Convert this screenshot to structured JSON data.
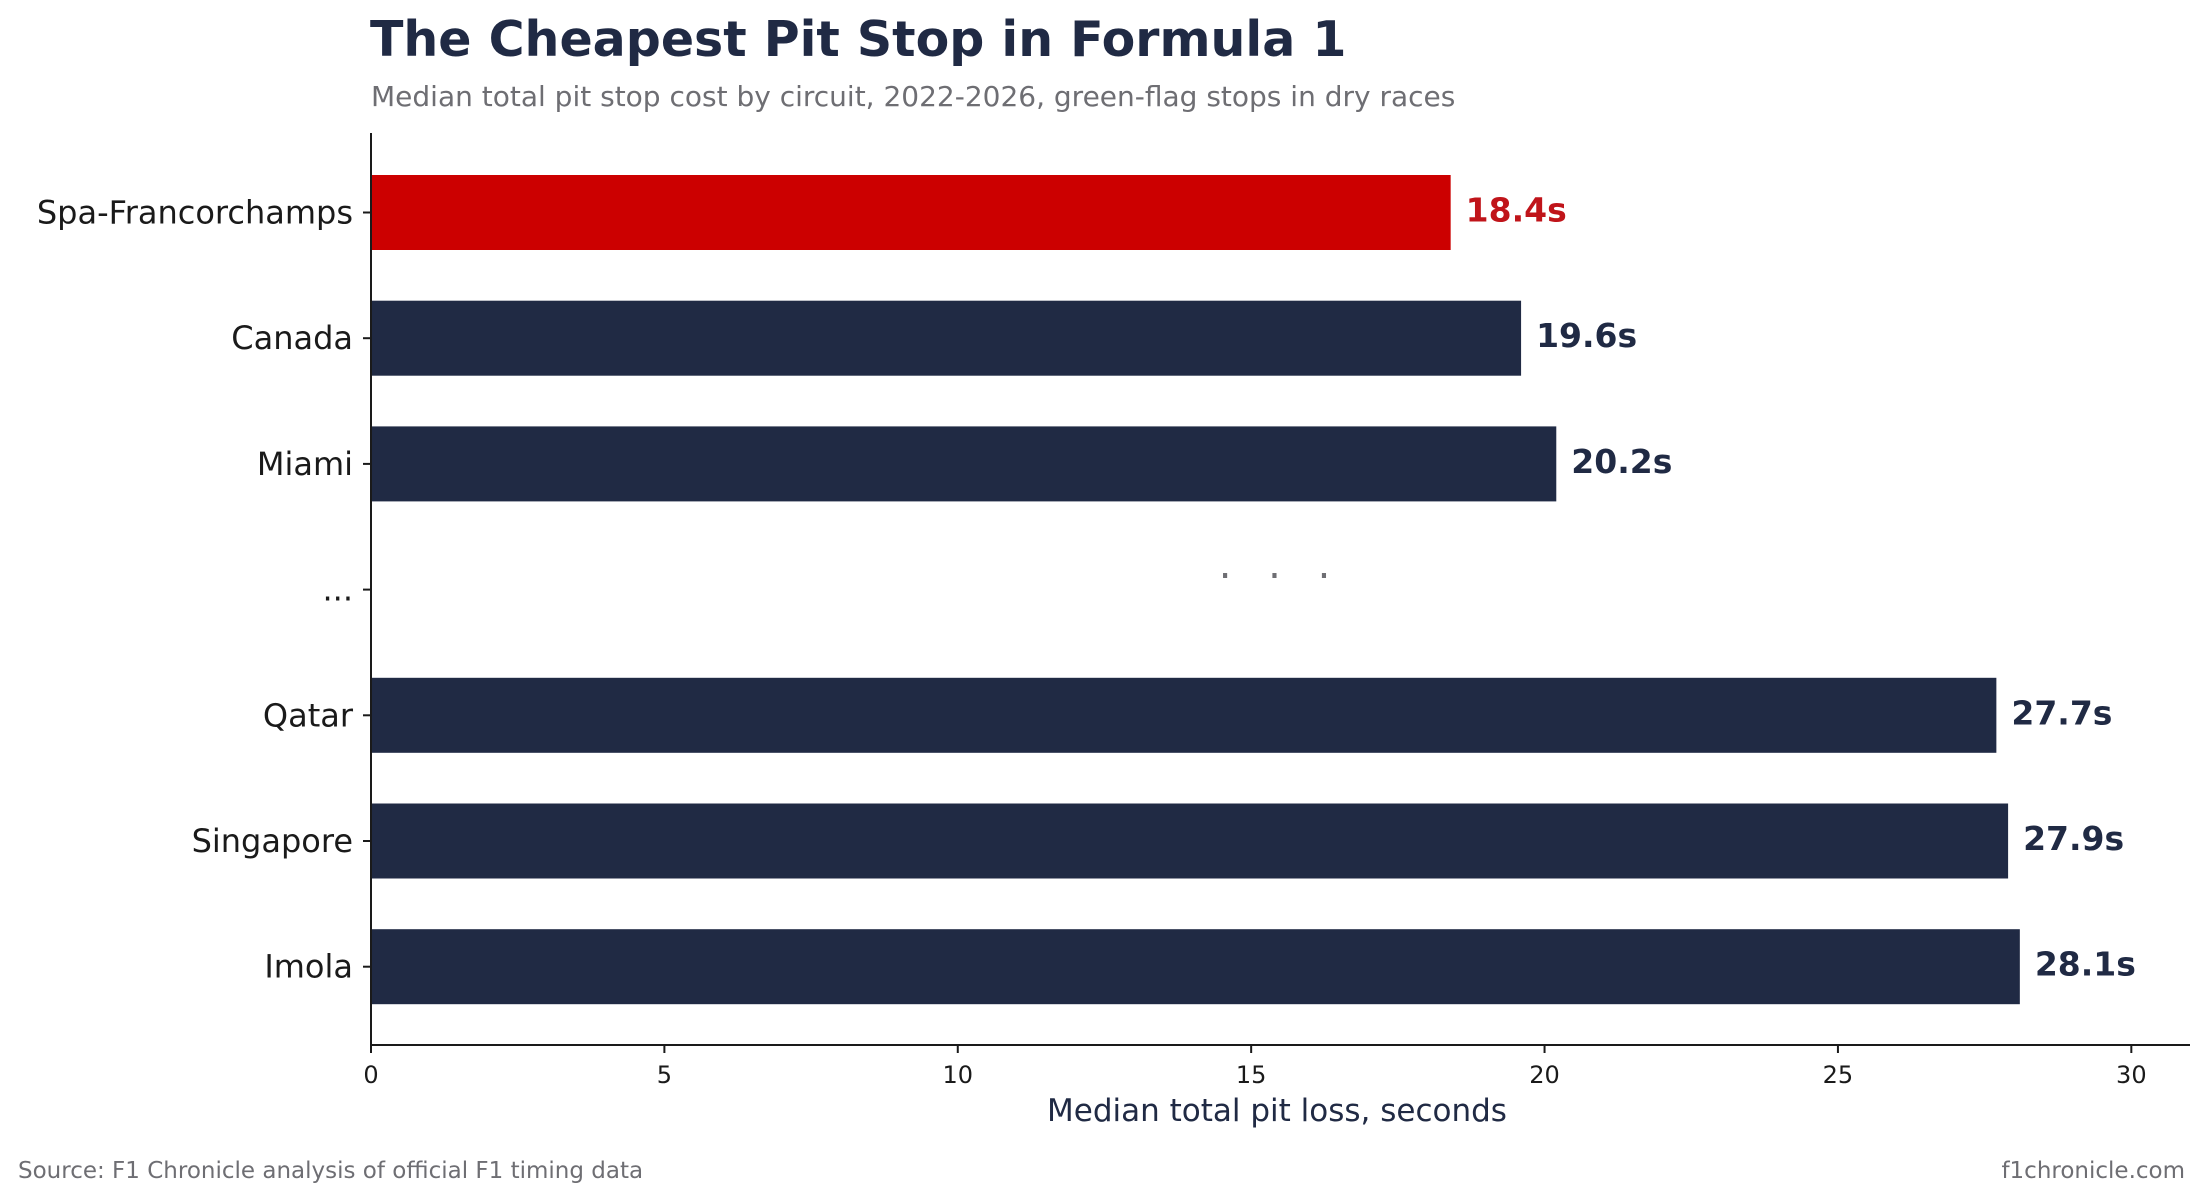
{
  "chart_data": {
    "type": "bar",
    "orientation": "horizontal",
    "title": "The Cheapest Pit Stop in Formula 1",
    "subtitle": "Median total pit stop cost by circuit, 2022-2026, green-flag stops in dry races",
    "xlabel": "Median total pit loss, seconds",
    "xlim": [
      0,
      31
    ],
    "xticks": [
      0,
      5,
      10,
      15,
      20,
      25,
      30
    ],
    "grid": false,
    "gap_label": "...",
    "gap_marker": "· · ·",
    "bars": [
      {
        "category": "Spa-Francorchamps",
        "value": 18.4,
        "label": "18.4s",
        "highlight": true
      },
      {
        "category": "Canada",
        "value": 19.6,
        "label": "19.6s",
        "highlight": false
      },
      {
        "category": "Miami",
        "value": 20.2,
        "label": "20.2s",
        "highlight": false
      },
      {
        "category": "...",
        "value": null,
        "label": "",
        "gap": true
      },
      {
        "category": "Qatar",
        "value": 27.7,
        "label": "27.7s",
        "highlight": false
      },
      {
        "category": "Singapore",
        "value": 27.9,
        "label": "27.9s",
        "highlight": false
      },
      {
        "category": "Imola",
        "value": 28.1,
        "label": "28.1s",
        "highlight": false
      }
    ],
    "colors": {
      "highlight": "#cc0000",
      "highlight_label": "#c0141a",
      "default": "#202a44",
      "default_label": "#202a44"
    }
  },
  "footer": {
    "source": "Source: F1 Chronicle analysis of official F1 timing data",
    "site": "f1chronicle.com"
  }
}
